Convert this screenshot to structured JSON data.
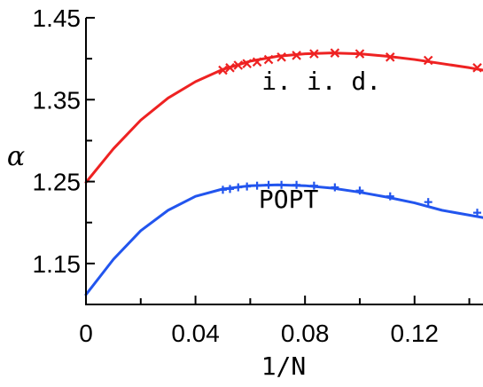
{
  "chart_data": {
    "type": "line",
    "title": "",
    "xlabel": "1/N",
    "ylabel": "α",
    "xlim": [
      0,
      0.145
    ],
    "ylim": [
      1.1,
      1.45
    ],
    "xticks": [
      0,
      0.02,
      0.04,
      0.06,
      0.08,
      0.1,
      0.12,
      0.14
    ],
    "xtick_labels": [
      "0",
      "",
      "0.04",
      "",
      "0.08",
      "",
      "0.12",
      ""
    ],
    "yticks": [
      1.1,
      1.15,
      1.2,
      1.25,
      1.3,
      1.35,
      1.4,
      1.45
    ],
    "ytick_labels": [
      "",
      "1.15",
      "",
      "1.25",
      "",
      "1.35",
      "",
      "1.45"
    ],
    "grid": false,
    "series": [
      {
        "name": "i. i. d.",
        "color": "#ee2222",
        "marker": "x",
        "curve_x": [
          0,
          0.01,
          0.02,
          0.03,
          0.04,
          0.05,
          0.06,
          0.07,
          0.08,
          0.09,
          0.1,
          0.11,
          0.12,
          0.13,
          0.14,
          0.145
        ],
        "curve_y": [
          1.249,
          1.29,
          1.325,
          1.352,
          1.372,
          1.387,
          1.397,
          1.403,
          1.406,
          1.407,
          1.406,
          1.403,
          1.399,
          1.394,
          1.389,
          1.386
        ],
        "points_x": [
          0.05,
          0.0526,
          0.0556,
          0.0588,
          0.0625,
          0.0667,
          0.0714,
          0.0769,
          0.0833,
          0.0909,
          0.1,
          0.1111,
          0.125,
          0.1429
        ],
        "points_y": [
          1.386,
          1.389,
          1.392,
          1.394,
          1.396,
          1.399,
          1.402,
          1.404,
          1.406,
          1.407,
          1.406,
          1.402,
          1.398,
          1.389
        ],
        "label_x": 0.086,
        "label_y": 1.362
      },
      {
        "name": "POPT",
        "color": "#2255ee",
        "marker": "+",
        "curve_x": [
          0,
          0.01,
          0.02,
          0.03,
          0.04,
          0.05,
          0.06,
          0.07,
          0.08,
          0.09,
          0.1,
          0.11,
          0.12,
          0.13,
          0.14,
          0.145
        ],
        "curve_y": [
          1.112,
          1.155,
          1.19,
          1.215,
          1.232,
          1.241,
          1.245,
          1.246,
          1.245,
          1.242,
          1.237,
          1.231,
          1.224,
          1.215,
          1.209,
          1.206
        ],
        "points_x": [
          0.05,
          0.0526,
          0.0556,
          0.0588,
          0.0625,
          0.0667,
          0.0714,
          0.0769,
          0.0833,
          0.0909,
          0.1,
          0.1111,
          0.125,
          0.1429
        ],
        "points_y": [
          1.24,
          1.241,
          1.243,
          1.244,
          1.245,
          1.246,
          1.246,
          1.246,
          1.245,
          1.243,
          1.239,
          1.232,
          1.225,
          1.212
        ],
        "label_x": 0.074,
        "label_y": 1.218
      }
    ]
  }
}
